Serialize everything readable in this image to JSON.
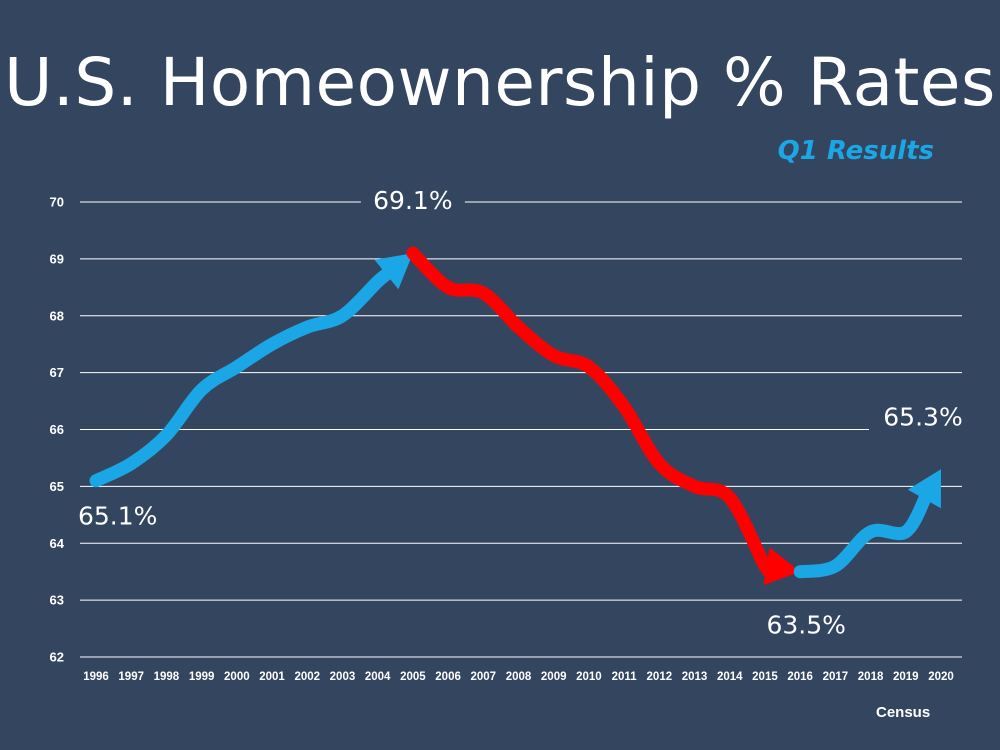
{
  "title": "U.S. Homeownership % Rates",
  "subtitle": "Q1 Results",
  "source": "Census",
  "colors": {
    "background": "#34465f",
    "rising": "#1ba6e6",
    "falling": "#ff0000",
    "subtitle": "#1ba6e6",
    "gridline": "#ffffff"
  },
  "chart_data": {
    "type": "line",
    "title": "U.S. Homeownership % Rates",
    "subtitle": "Q1 Results",
    "xlabel": "",
    "ylabel": "",
    "ylim": [
      62,
      70
    ],
    "grid": true,
    "y_ticks": [
      62,
      63,
      64,
      65,
      66,
      67,
      68,
      69,
      70
    ],
    "categories": [
      "1996",
      "1997",
      "1998",
      "1999",
      "2000",
      "2001",
      "2002",
      "2003",
      "2004",
      "2005",
      "2006",
      "2007",
      "2008",
      "2009",
      "2010",
      "2011",
      "2012",
      "2013",
      "2014",
      "2015",
      "2016",
      "2017",
      "2018",
      "2019",
      "2020"
    ],
    "values": [
      65.1,
      65.4,
      65.9,
      66.7,
      67.1,
      67.5,
      67.8,
      68.0,
      68.6,
      69.1,
      68.5,
      68.4,
      67.8,
      67.3,
      67.1,
      66.4,
      65.4,
      65.0,
      64.8,
      63.6,
      63.5,
      63.6,
      64.2,
      64.2,
      65.3
    ],
    "segments": [
      {
        "from": "1996",
        "to": "2005",
        "color": "#1ba6e6",
        "direction": "up"
      },
      {
        "from": "2005",
        "to": "2016",
        "color": "#ff0000",
        "direction": "down"
      },
      {
        "from": "2016",
        "to": "2020",
        "color": "#1ba6e6",
        "direction": "up"
      }
    ],
    "annotations": [
      {
        "year": "1996",
        "text": "65.1%"
      },
      {
        "year": "2005",
        "text": "69.1%"
      },
      {
        "year": "2016",
        "text": "63.5%"
      },
      {
        "year": "2020",
        "text": "65.3%"
      }
    ]
  }
}
